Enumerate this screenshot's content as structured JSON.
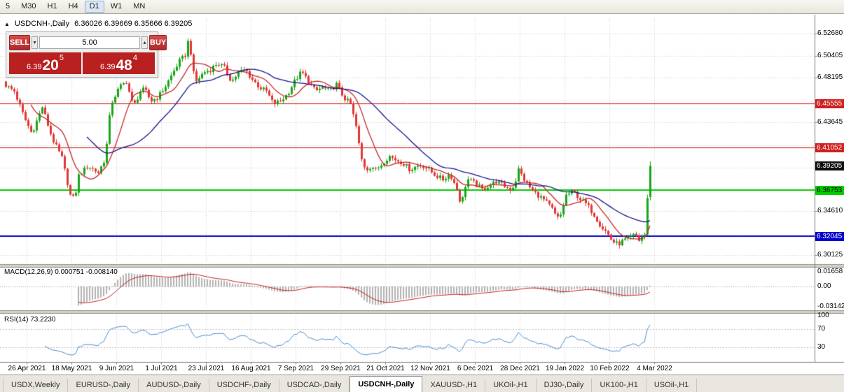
{
  "toolbar": {
    "timeframes": [
      {
        "label": "5",
        "active": false
      },
      {
        "label": "M30",
        "active": false
      },
      {
        "label": "H1",
        "active": false
      },
      {
        "label": "H4",
        "active": false
      },
      {
        "label": "D1",
        "active": true
      },
      {
        "label": "W1",
        "active": false
      },
      {
        "label": "MN",
        "active": false
      }
    ]
  },
  "chart": {
    "symbol_title": "USDCNH-,Daily",
    "ohlc_text": "6.36026 6.39669 6.35666 6.39205"
  },
  "trade_panel": {
    "sell_label": "SELL",
    "buy_label": "BUY",
    "volume": "5.00",
    "sell_price": {
      "prefix": "6.39",
      "big": "20",
      "sup": "5"
    },
    "buy_price": {
      "prefix": "6.39",
      "big": "48",
      "sup": "4"
    }
  },
  "indicators": {
    "macd": {
      "label": "MACD(12,26,9) 0.000751 -0.008140",
      "axis_labels": [
        "0.01658",
        "0.00",
        "-0.03142"
      ]
    },
    "rsi": {
      "label": "RSI(14) 73.2230",
      "axis_labels": [
        "100",
        "70",
        "30"
      ],
      "levels": [
        70,
        30
      ]
    }
  },
  "tabs": {
    "items": [
      {
        "label": "USDX,Weekly",
        "active": false
      },
      {
        "label": "EURUSD-,Daily",
        "active": false
      },
      {
        "label": "AUDUSD-,Daily",
        "active": false
      },
      {
        "label": "USDCHF-,Daily",
        "active": false
      },
      {
        "label": "USDCAD-,Daily",
        "active": false
      },
      {
        "label": "USDCNH-,Daily",
        "active": true
      },
      {
        "label": "XAUUSD-,H1",
        "active": false
      },
      {
        "label": "UKOil-,H1",
        "active": false
      },
      {
        "label": "DJ30-,Daily",
        "active": false
      },
      {
        "label": "UK100-,H1",
        "active": false
      },
      {
        "label": "USOil-,H1",
        "active": false
      }
    ]
  },
  "chart_data": {
    "type": "candlestick",
    "symbol": "USDCNH",
    "timeframe": "Daily",
    "last_ohlc": {
      "open": 6.36026,
      "high": 6.39669,
      "low": 6.35666,
      "close": 6.39205
    },
    "price_range": {
      "top": 6.5425,
      "bottom": 6.2925
    },
    "candle_count": 231,
    "x_labels": [
      "26 Apr 2021",
      "18 May 2021",
      "9 Jun 2021",
      "1 Jul 2021",
      "23 Jul 2021",
      "16 Aug 2021",
      "7 Sep 2021",
      "29 Sep 2021",
      "21 Oct 2021",
      "12 Nov 2021",
      "6 Dec 2021",
      "28 Dec 2021",
      "19 Jan 2022",
      "10 Feb 2022",
      "4 Mar 2022"
    ],
    "y_axis_labels": [
      {
        "text": "6.52680",
        "value": 6.5268
      },
      {
        "text": "6.50405",
        "value": 6.50405
      },
      {
        "text": "6.48195",
        "value": 6.48195
      },
      {
        "text": "6.43645",
        "value": 6.43645
      },
      {
        "text": "6.34610",
        "value": 6.3461
      },
      {
        "text": "6.30125",
        "value": 6.30125
      }
    ],
    "price_tags": [
      {
        "text": "6.45555",
        "price": 6.45555,
        "bg": "#d01f1f",
        "fg": "#ffffff"
      },
      {
        "text": "6.41052",
        "price": 6.41052,
        "bg": "#d01f1f",
        "fg": "#ffffff"
      },
      {
        "text": "6.39205",
        "price": 6.39205,
        "bg": "#101010",
        "fg": "#ffffff"
      },
      {
        "text": "6.36753",
        "price": 6.36753,
        "bg": "#00cc00",
        "fg": "#000000"
      },
      {
        "text": "6.32045",
        "price": 6.32045,
        "bg": "#0000cc",
        "fg": "#ffffff"
      }
    ],
    "hlines": [
      {
        "price": 6.45555,
        "color": "#cc1212",
        "w": 1
      },
      {
        "price": 6.41052,
        "color": "#cc1212",
        "w": 1
      },
      {
        "price": 6.36753,
        "color": "#00cc00",
        "w": 2
      },
      {
        "price": 6.32045,
        "color": "#0000cc",
        "w": 2
      }
    ],
    "grid_prices": [
      6.5268,
      6.50405,
      6.48195,
      6.45855,
      6.43645,
      6.41305,
      6.3903,
      6.36755,
      6.3461,
      6.32205,
      6.30125
    ],
    "path": [
      [
        8,
        6.474
      ],
      [
        20,
        6.468
      ],
      [
        35,
        6.44
      ],
      [
        45,
        6.425
      ],
      [
        60,
        6.452
      ],
      [
        74,
        6.42
      ],
      [
        88,
        6.4
      ],
      [
        100,
        6.362
      ],
      [
        106,
        6.358
      ],
      [
        112,
        6.382
      ],
      [
        125,
        6.392
      ],
      [
        140,
        6.385
      ],
      [
        150,
        6.4
      ],
      [
        158,
        6.455
      ],
      [
        170,
        6.472
      ],
      [
        180,
        6.478
      ],
      [
        190,
        6.452
      ],
      [
        200,
        6.468
      ],
      [
        206,
        6.47
      ],
      [
        215,
        6.458
      ],
      [
        225,
        6.462
      ],
      [
        235,
        6.472
      ],
      [
        245,
        6.485
      ],
      [
        255,
        6.498
      ],
      [
        264,
        6.505
      ],
      [
        270,
        6.525
      ],
      [
        274,
        6.49
      ],
      [
        280,
        6.478
      ],
      [
        290,
        6.487
      ],
      [
        300,
        6.49
      ],
      [
        310,
        6.497
      ],
      [
        320,
        6.492
      ],
      [
        330,
        6.478
      ],
      [
        340,
        6.487
      ],
      [
        350,
        6.49
      ],
      [
        360,
        6.48
      ],
      [
        370,
        6.472
      ],
      [
        380,
        6.468
      ],
      [
        390,
        6.455
      ],
      [
        400,
        6.458
      ],
      [
        410,
        6.465
      ],
      [
        420,
        6.478
      ],
      [
        430,
        6.488
      ],
      [
        440,
        6.478
      ],
      [
        450,
        6.468
      ],
      [
        460,
        6.472
      ],
      [
        470,
        6.468
      ],
      [
        480,
        6.475
      ],
      [
        490,
        6.462
      ],
      [
        500,
        6.455
      ],
      [
        508,
        6.432
      ],
      [
        515,
        6.4
      ],
      [
        522,
        6.388
      ],
      [
        530,
        6.392
      ],
      [
        536,
        6.388
      ],
      [
        545,
        6.394
      ],
      [
        555,
        6.402
      ],
      [
        565,
        6.398
      ],
      [
        575,
        6.395
      ],
      [
        585,
        6.388
      ],
      [
        595,
        6.392
      ],
      [
        602,
        6.393
      ],
      [
        612,
        6.388
      ],
      [
        622,
        6.382
      ],
      [
        632,
        6.378
      ],
      [
        642,
        6.384
      ],
      [
        652,
        6.368
      ],
      [
        658,
        6.352
      ],
      [
        664,
        6.372
      ],
      [
        668,
        6.378
      ],
      [
        678,
        6.374
      ],
      [
        688,
        6.368
      ],
      [
        698,
        6.372
      ],
      [
        708,
        6.376
      ],
      [
        718,
        6.372
      ],
      [
        728,
        6.368
      ],
      [
        734,
        6.372
      ],
      [
        740,
        6.388
      ],
      [
        748,
        6.378
      ],
      [
        758,
        6.368
      ],
      [
        768,
        6.362
      ],
      [
        778,
        6.356
      ],
      [
        788,
        6.348
      ],
      [
        795,
        6.338
      ],
      [
        800,
        6.342
      ],
      [
        808,
        6.362
      ],
      [
        818,
        6.366
      ],
      [
        828,
        6.358
      ],
      [
        838,
        6.352
      ],
      [
        848,
        6.342
      ],
      [
        858,
        6.33
      ],
      [
        866,
        6.324
      ],
      [
        874,
        6.315
      ],
      [
        882,
        6.312
      ],
      [
        890,
        6.316
      ],
      [
        898,
        6.318
      ],
      [
        906,
        6.322
      ],
      [
        912,
        6.316
      ],
      [
        916,
        6.32
      ],
      [
        920,
        6.322
      ],
      [
        924,
        6.358
      ]
    ],
    "colors": {
      "up": "#16a616",
      "down": "#e23535",
      "ma_fast": "#c82828",
      "ma_slow": "#14148c",
      "macd_hist": "#b2b2b2",
      "macd_signal": "#cc2222",
      "rsi_line": "#4a90d2",
      "grid": "#d2d2d2",
      "axis_line": "#7f7f7f"
    },
    "ma": [
      {
        "period": 10,
        "color": "#c82828"
      },
      {
        "period": 30,
        "color": "#14148c"
      }
    ],
    "macd_params": [
      12,
      26,
      9
    ],
    "rsi_period": 14
  }
}
